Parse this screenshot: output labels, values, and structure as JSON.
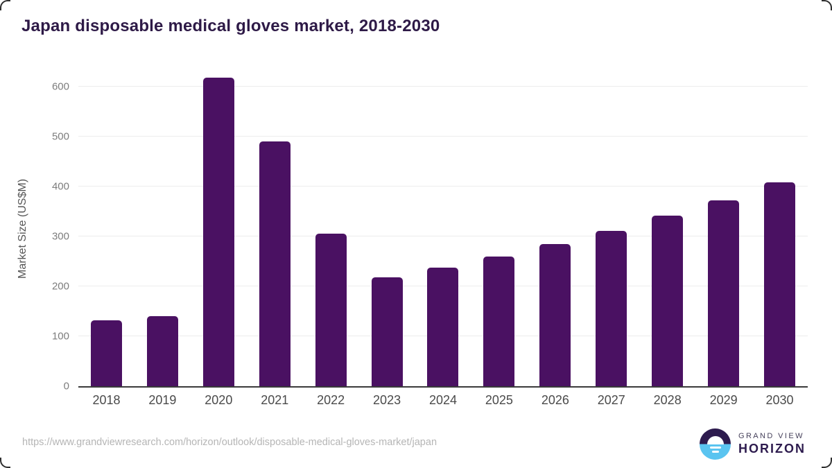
{
  "chart_data": {
    "type": "bar",
    "title": "Japan disposable medical gloves market, 2018-2030",
    "categories": [
      "2018",
      "2019",
      "2020",
      "2021",
      "2022",
      "2023",
      "2024",
      "2025",
      "2026",
      "2027",
      "2028",
      "2029",
      "2030"
    ],
    "values": [
      132,
      140,
      617,
      490,
      305,
      218,
      237,
      259,
      285,
      311,
      341,
      372,
      408
    ],
    "xlabel": "",
    "ylabel": "Market Size (US$M)",
    "yticks": [
      0,
      100,
      200,
      300,
      400,
      500,
      600
    ],
    "ylim": [
      0,
      630
    ],
    "grid": true,
    "legend": false,
    "bar_color": "#4a1162"
  },
  "colors": {
    "title_text": "#2e1a47",
    "bar": "#4a1162",
    "gridline": "#ececec",
    "axis_line": "#3a3a3a",
    "y_tick_label": "#7d7d7d",
    "x_label": "#4a4a4a",
    "url_text": "#b5b5b5",
    "logo_dark_purple": "#2d1b4e",
    "logo_sky_blue": "#5ac4f0"
  },
  "footer": {
    "url": "https://www.grandviewresearch.com/horizon/outlook/disposable-medical-gloves-market/japan",
    "logo": {
      "line1": "GRAND VIEW",
      "line2": "HORIZON"
    }
  }
}
